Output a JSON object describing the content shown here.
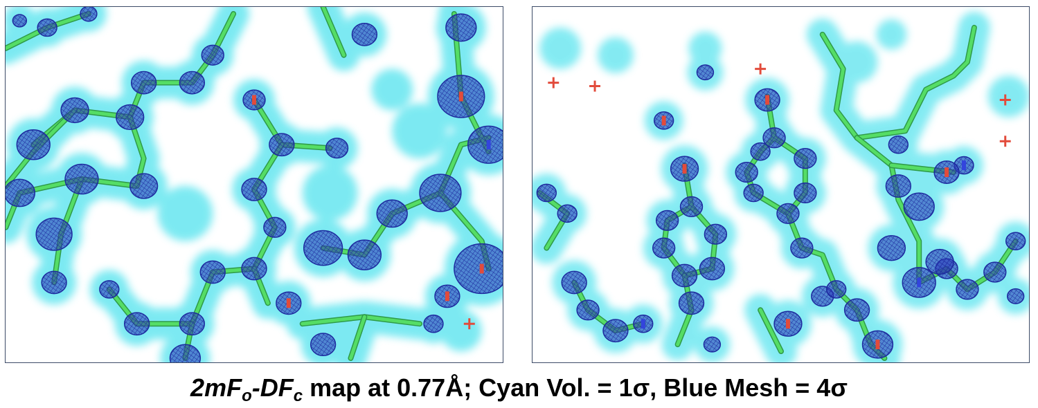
{
  "caption": {
    "m1": "2mF",
    "s1": "o",
    "m2": "-DF",
    "s2": "c",
    "rest": " map at 0.77Å; Cyan Vol. = 1σ, Blue Mesh = 4σ"
  },
  "colors": {
    "cyan_volume": "#5fe8f2",
    "blue_mesh": "#1d2a9e",
    "carbon_stick": "#55dd66",
    "oxygen": "#e24b3b",
    "nitrogen": "#3344dd",
    "frame": "#3b4a66"
  }
}
